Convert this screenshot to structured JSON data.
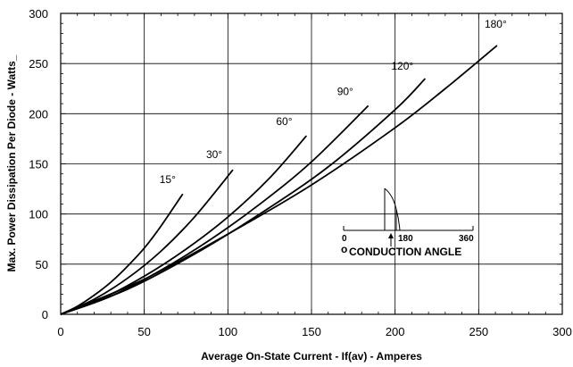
{
  "chart_data": {
    "type": "line",
    "xlabel": "Average On-State Current - If(av) - Amperes",
    "ylabel": "Max. Power Dissipation Per Diode - Watts_",
    "xlim": [
      0,
      300
    ],
    "ylim": [
      0,
      300
    ],
    "xticks": [
      "0",
      "50",
      "100",
      "150",
      "200",
      "250",
      "300"
    ],
    "yticks": [
      "0",
      "50",
      "100",
      "150",
      "200",
      "250",
      "300"
    ],
    "grid": true,
    "series": [
      {
        "name": "15°",
        "x": [
          0,
          10,
          20,
          30,
          40,
          50,
          60,
          73
        ],
        "y": [
          0,
          8,
          19,
          32,
          48,
          66,
          88,
          120
        ]
      },
      {
        "name": "30°",
        "x": [
          0,
          20,
          40,
          60,
          80,
          103
        ],
        "y": [
          0,
          15,
          36,
          63,
          97,
          144
        ]
      },
      {
        "name": "60°",
        "x": [
          0,
          25,
          50,
          75,
          100,
          125,
          147
        ],
        "y": [
          0,
          16,
          38,
          65,
          97,
          136,
          178
        ]
      },
      {
        "name": "90°",
        "x": [
          0,
          30,
          60,
          90,
          120,
          150,
          184
        ],
        "y": [
          0,
          18,
          44,
          75,
          111,
          152,
          208
        ]
      },
      {
        "name": "120°",
        "x": [
          0,
          40,
          80,
          120,
          160,
          200,
          218
        ],
        "y": [
          0,
          25,
          60,
          101,
          147,
          204,
          235
        ]
      },
      {
        "name": "180°",
        "x": [
          0,
          50,
          100,
          150,
          200,
          230,
          261
        ],
        "y": [
          0,
          35,
          80,
          129,
          186,
          225,
          268
        ]
      }
    ],
    "inset": {
      "scale_labels": [
        "0",
        "180",
        "360"
      ],
      "caption": "CONDUCTION ANGLE",
      "degree_mark": "o"
    }
  }
}
